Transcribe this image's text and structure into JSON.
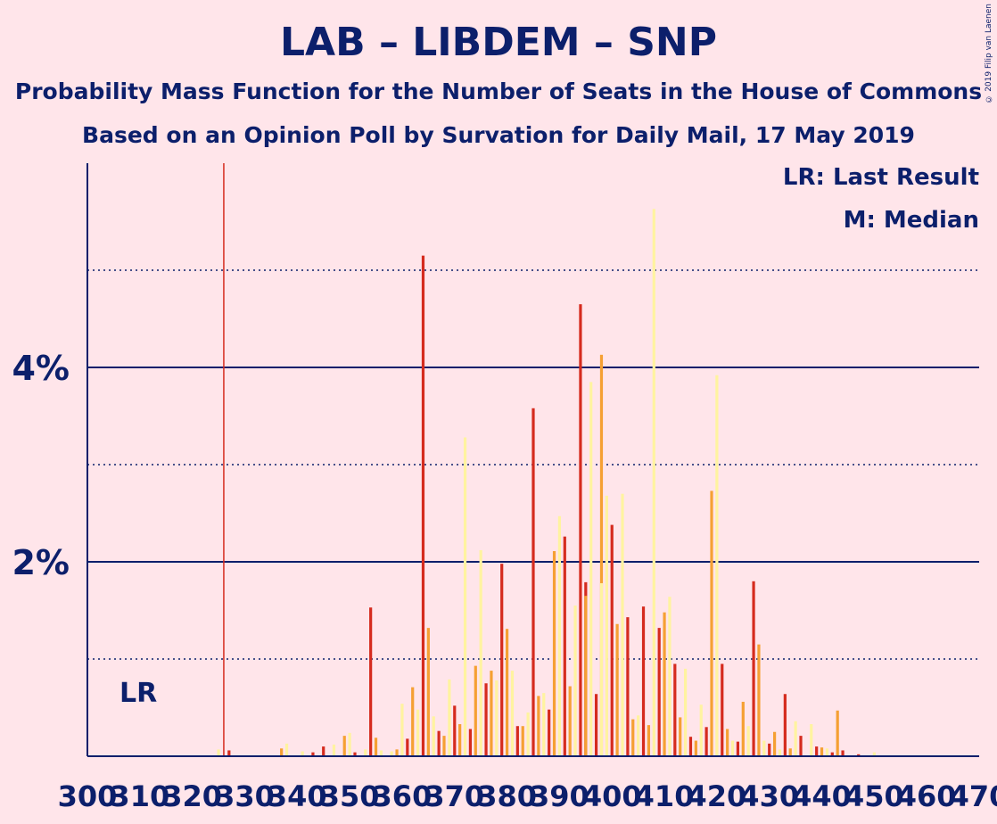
{
  "title": "LAB – LIBDEM – SNP",
  "subtitle1": "Probability Mass Function for the Number of Seats in the House of Commons",
  "subtitle2": "Based on an Opinion Poll by Survation for Daily Mail, 17 May 2019",
  "legend_lr": "LR: Last Result",
  "legend_m": "M: Median",
  "lr_marker": "LR",
  "copyright": "© 2019 Filip van Laenen",
  "colors": {
    "red": "#D52B1E",
    "orange": "#F5A033",
    "yellow": "#FFF3A0",
    "axis": "#0C1F6B",
    "background": "#FFE5EA"
  },
  "chart_data": {
    "type": "bar",
    "x_range": [
      300,
      470
    ],
    "x_ticks": [
      300,
      310,
      320,
      330,
      340,
      350,
      360,
      370,
      380,
      390,
      400,
      410,
      420,
      430,
      440,
      450,
      460,
      470
    ],
    "y_range": [
      0,
      6.1
    ],
    "y_ticks_major": [
      {
        "value": 2,
        "label": "2%"
      },
      {
        "value": 4,
        "label": "4%"
      }
    ],
    "y_ticks_minor": [
      1,
      3,
      5
    ],
    "last_result": 326,
    "series": [
      {
        "name": "LAB",
        "color": "red",
        "points": [
          [
            327,
            0.06
          ],
          [
            343,
            0.04
          ],
          [
            345,
            0.1
          ],
          [
            351,
            0.04
          ],
          [
            354,
            1.53
          ],
          [
            361,
            0.18
          ],
          [
            364,
            5.15
          ],
          [
            367,
            0.26
          ],
          [
            370,
            0.52
          ],
          [
            373,
            0.28
          ],
          [
            376,
            0.75
          ],
          [
            379,
            1.98
          ],
          [
            382,
            0.31
          ],
          [
            385,
            3.58
          ],
          [
            388,
            0.48
          ],
          [
            391,
            2.26
          ],
          [
            394,
            4.65
          ],
          [
            395,
            1.79
          ],
          [
            397,
            0.64
          ],
          [
            400,
            2.38
          ],
          [
            403,
            1.43
          ],
          [
            406,
            1.54
          ],
          [
            409,
            1.32
          ],
          [
            412,
            0.95
          ],
          [
            415,
            0.2
          ],
          [
            418,
            0.3
          ],
          [
            421,
            0.95
          ],
          [
            424,
            0.15
          ],
          [
            427,
            1.8
          ],
          [
            430,
            0.13
          ],
          [
            433,
            0.64
          ],
          [
            436,
            0.21
          ],
          [
            439,
            0.1
          ],
          [
            442,
            0.04
          ],
          [
            444,
            0.06
          ],
          [
            447,
            0.02
          ]
        ]
      },
      {
        "name": "LIBDEM",
        "color": "orange",
        "points": [
          [
            337,
            0.08
          ],
          [
            349,
            0.21
          ],
          [
            355,
            0.19
          ],
          [
            359,
            0.07
          ],
          [
            362,
            0.71
          ],
          [
            365,
            1.32
          ],
          [
            368,
            0.21
          ],
          [
            371,
            0.33
          ],
          [
            374,
            0.93
          ],
          [
            377,
            0.88
          ],
          [
            380,
            1.31
          ],
          [
            383,
            0.31
          ],
          [
            386,
            0.62
          ],
          [
            389,
            2.11
          ],
          [
            392,
            0.72
          ],
          [
            395,
            1.65
          ],
          [
            398,
            4.13
          ],
          [
            401,
            1.36
          ],
          [
            404,
            0.38
          ],
          [
            407,
            0.32
          ],
          [
            410,
            1.48
          ],
          [
            413,
            0.4
          ],
          [
            416,
            0.16
          ],
          [
            419,
            2.73
          ],
          [
            422,
            0.28
          ],
          [
            425,
            0.56
          ],
          [
            428,
            1.15
          ],
          [
            431,
            0.25
          ],
          [
            434,
            0.08
          ],
          [
            440,
            0.09
          ],
          [
            443,
            0.47
          ]
        ]
      },
      {
        "name": "SNP",
        "color": "yellow",
        "points": [
          [
            325,
            0.07
          ],
          [
            338,
            0.13
          ],
          [
            341,
            0.05
          ],
          [
            347,
            0.12
          ],
          [
            350,
            0.24
          ],
          [
            353,
            0.07
          ],
          [
            356,
            0.06
          ],
          [
            358,
            0.05
          ],
          [
            360,
            0.54
          ],
          [
            363,
            0.48
          ],
          [
            366,
            0.41
          ],
          [
            369,
            0.79
          ],
          [
            372,
            3.28
          ],
          [
            375,
            2.12
          ],
          [
            378,
            0.78
          ],
          [
            381,
            0.88
          ],
          [
            384,
            0.45
          ],
          [
            387,
            0.65
          ],
          [
            390,
            2.47
          ],
          [
            393,
            1.55
          ],
          [
            396,
            3.85
          ],
          [
            398,
            1.78
          ],
          [
            399,
            2.68
          ],
          [
            402,
            2.7
          ],
          [
            405,
            0.42
          ],
          [
            408,
            5.63
          ],
          [
            411,
            1.64
          ],
          [
            414,
            0.9
          ],
          [
            417,
            0.53
          ],
          [
            420,
            3.92
          ],
          [
            423,
            0.16
          ],
          [
            426,
            0.31
          ],
          [
            429,
            0.16
          ],
          [
            432,
            0.07
          ],
          [
            435,
            0.36
          ],
          [
            438,
            0.33
          ],
          [
            441,
            0.08
          ],
          [
            450,
            0.04
          ]
        ]
      }
    ]
  }
}
